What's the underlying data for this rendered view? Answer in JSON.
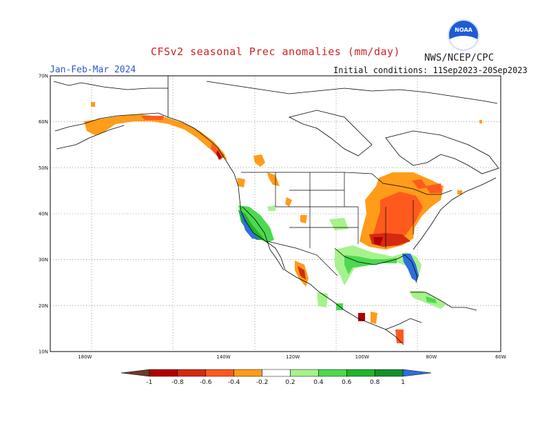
{
  "header": {
    "title": "CFSv2 seasonal Prec anomalies (mm/day)",
    "organization": "NWS/NCEP/CPC",
    "logo_text": "NOAA",
    "season": "Jan-Feb-Mar 2024",
    "initial_conditions": "Initial conditions: 11Sep2023-20Sep2023"
  },
  "map": {
    "lon_range": [
      -190,
      -60
    ],
    "lat_range": [
      10,
      70
    ],
    "lat_ticks": [
      "70N",
      "60N",
      "50N",
      "40N",
      "30N",
      "20N",
      "10N"
    ],
    "lon_ticks": [
      "180W",
      "140W",
      "120W",
      "100W",
      "80W",
      "60W"
    ],
    "grid": "dotted",
    "anomalies": [
      {
        "region": "Alaska south coast",
        "sign": "dry"
      },
      {
        "region": "Pacific Northwest coast",
        "sign": "dry"
      },
      {
        "region": "California coast",
        "sign": "wet"
      },
      {
        "region": "Ohio Valley / Great Lakes",
        "sign": "dry"
      },
      {
        "region": "Florida",
        "sign": "wet"
      },
      {
        "region": "Gulf Coast / northeast Mexico",
        "sign": "wet"
      },
      {
        "region": "Caribbean / Cuba",
        "sign": "wet"
      },
      {
        "region": "Northwest Mexico",
        "sign": "dry"
      }
    ]
  },
  "colorbar": {
    "labels": [
      "-1",
      "-0.8",
      "-0.6",
      "-0.4",
      "-0.2",
      "0.2",
      "0.4",
      "0.6",
      "0.8",
      "1"
    ],
    "colors": [
      "#6b3a2a",
      "#b30000",
      "#d42a10",
      "#ff5a1e",
      "#ff9c1a",
      "#ffffff",
      "#a6f28c",
      "#4cd950",
      "#22b42a",
      "#15902a",
      "#2f6fdc"
    ]
  }
}
